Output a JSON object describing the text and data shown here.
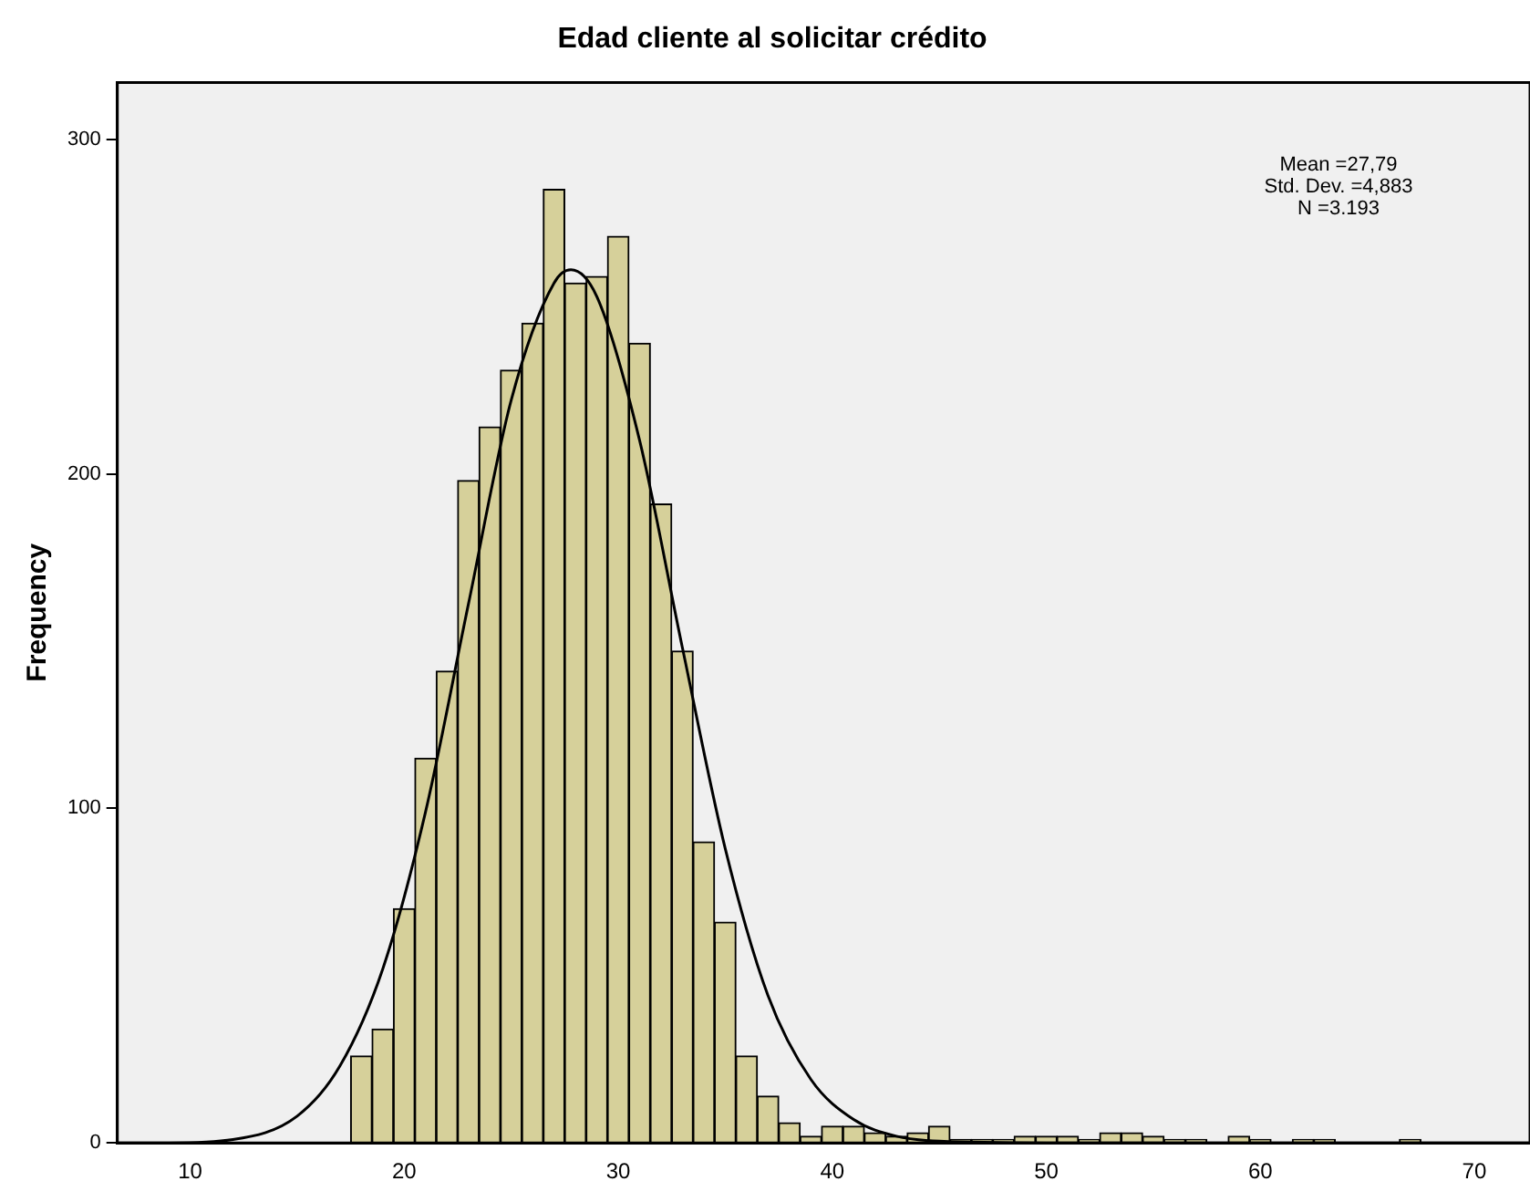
{
  "chart_data": {
    "type": "histogram",
    "title": "Edad cliente al solicitar crédito",
    "ylabel": "Frequency",
    "bins": [
      17.5,
      18.5,
      19.5,
      20.5,
      21.5,
      22.5,
      23.5,
      24.5,
      25.5,
      26.5,
      27.5,
      28.5,
      29.5,
      30.5,
      31.5,
      32.5,
      33.5,
      34.5,
      35.5,
      36.5,
      37.5,
      38.5,
      39.5,
      40.5,
      41.5,
      42.5,
      43.5,
      44.5,
      45.5,
      46.5,
      47.5,
      48.5,
      49.5,
      50.5,
      51.5,
      52.5,
      53.5,
      54.5,
      55.5,
      56.5,
      57.5,
      58.5,
      59.5,
      60.5,
      61.5,
      62.5,
      63.5,
      64.5,
      65.5,
      66.5,
      67.5
    ],
    "values": [
      26,
      34,
      70,
      115,
      141,
      198,
      214,
      231,
      245,
      285,
      257,
      259,
      271,
      239,
      191,
      147,
      90,
      66,
      26,
      14,
      6,
      2,
      5,
      5,
      3,
      2,
      3,
      5,
      1,
      1,
      1,
      2,
      2,
      2,
      1,
      3,
      3,
      2,
      1,
      1,
      0,
      2,
      1,
      0,
      1,
      1,
      0,
      0,
      0,
      1
    ],
    "color": "#d6d09a",
    "series": [
      {
        "type": "line",
        "color": "#000000",
        "x": [
          6.6,
          9,
          12,
          15,
          17,
          19,
          21,
          23,
          25,
          27,
          27.79,
          29,
          31,
          33,
          35,
          37,
          39,
          41,
          43,
          45,
          50,
          60,
          72.6
        ],
        "values": [
          0,
          0,
          1,
          8,
          23,
          52,
          99,
          161,
          222,
          257,
          261,
          253,
          210,
          148,
          88,
          44,
          19,
          7,
          2,
          0.5,
          0,
          0,
          0
        ]
      }
    ],
    "xlim": [
      6.6,
      72.6
    ],
    "ylim": [
      0,
      317
    ],
    "xticks": [
      10,
      20,
      30,
      40,
      50,
      60,
      70
    ],
    "yticks": [
      0,
      100,
      200,
      300
    ],
    "annotations": [
      "Mean =27,79\nStd. Dev. =4,883\nN =3.193"
    ]
  }
}
